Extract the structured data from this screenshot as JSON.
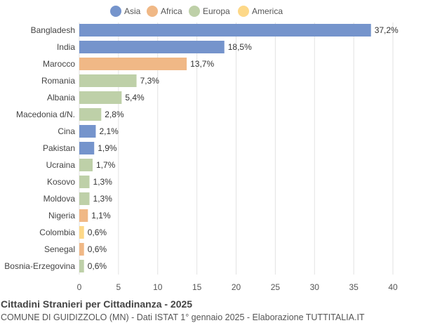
{
  "chart_data": {
    "type": "bar",
    "orientation": "horizontal",
    "title": "Cittadini Stranieri per Cittadinanza - 2025",
    "subtitle": "COMUNE DI GUIDIZZOLO (MN) - Dati ISTAT 1° gennaio 2025 - Elaborazione TUTTITALIA.IT",
    "legend": {
      "placement": "top",
      "entries": [
        {
          "name": "Asia",
          "color": "#7594cc"
        },
        {
          "name": "Africa",
          "color": "#f0b886"
        },
        {
          "name": "Europa",
          "color": "#bed0a8"
        },
        {
          "name": "America",
          "color": "#fdd888"
        }
      ]
    },
    "categories": [
      "Bangladesh",
      "India",
      "Marocco",
      "Romania",
      "Albania",
      "Macedonia d/N.",
      "Cina",
      "Pakistan",
      "Ucraina",
      "Kosovo",
      "Moldova",
      "Nigeria",
      "Colombia",
      "Senegal",
      "Bosnia-Erzegovina"
    ],
    "values": [
      37.2,
      18.5,
      13.7,
      7.3,
      5.4,
      2.8,
      2.1,
      1.9,
      1.7,
      1.3,
      1.3,
      1.1,
      0.6,
      0.6,
      0.6
    ],
    "labels": [
      "37,2%",
      "18,5%",
      "13,7%",
      "7,3%",
      "5,4%",
      "2,8%",
      "2,1%",
      "1,9%",
      "1,7%",
      "1,3%",
      "1,3%",
      "1,1%",
      "0,6%",
      "0,6%",
      "0,6%"
    ],
    "continent": [
      "Asia",
      "Asia",
      "Africa",
      "Europa",
      "Europa",
      "Europa",
      "Asia",
      "Asia",
      "Europa",
      "Europa",
      "Europa",
      "Africa",
      "America",
      "Africa",
      "Europa"
    ],
    "xlim": [
      0,
      40
    ],
    "xticks": [
      0,
      5,
      10,
      15,
      20,
      25,
      30,
      35,
      40
    ],
    "grid": true
  }
}
